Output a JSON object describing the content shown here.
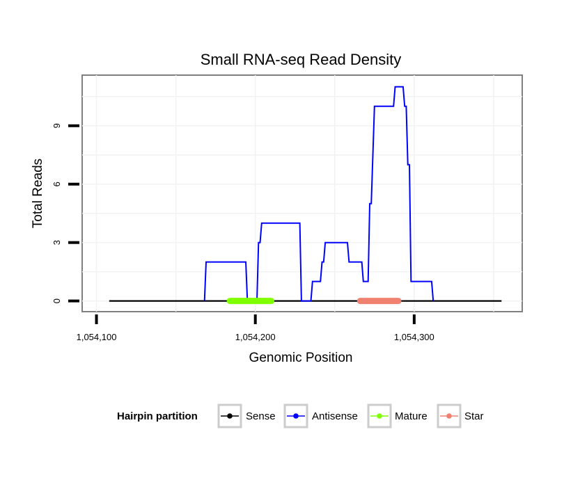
{
  "chart_data": {
    "type": "line",
    "title": "Small RNA-seq Read Density",
    "xlabel": "Genomic Position",
    "ylabel": "Total Reads",
    "xlim": [
      1054091,
      1054368
    ],
    "ylim": [
      -0.55,
      11.6
    ],
    "x_ticks": [
      1054100,
      1054200,
      1054300
    ],
    "x_tick_labels": [
      "1,054,100",
      "1,054,200",
      "1,054,300"
    ],
    "y_ticks": [
      0,
      3,
      6,
      9
    ],
    "y_tick_labels": [
      "0",
      "3",
      "6",
      "9"
    ],
    "grid": true,
    "series": [
      {
        "name": "Sense",
        "color": "#000000",
        "points": [
          [
            1054108,
            0
          ],
          [
            1054355,
            0
          ]
        ]
      },
      {
        "name": "Antisense",
        "color": "#0000ff",
        "points": [
          [
            1054168,
            0
          ],
          [
            1054169,
            2
          ],
          [
            1054194,
            2
          ],
          [
            1054195,
            0
          ],
          [
            1054201,
            0
          ],
          [
            1054202,
            3
          ],
          [
            1054203,
            3
          ],
          [
            1054204,
            4
          ],
          [
            1054228,
            4
          ],
          [
            1054229,
            0
          ],
          [
            1054235,
            0
          ],
          [
            1054236,
            1
          ],
          [
            1054241,
            1
          ],
          [
            1054242,
            2
          ],
          [
            1054243,
            2
          ],
          [
            1054244,
            3
          ],
          [
            1054258,
            3
          ],
          [
            1054259,
            2
          ],
          [
            1054267,
            2
          ],
          [
            1054268,
            1
          ],
          [
            1054271,
            1
          ],
          [
            1054272,
            5
          ],
          [
            1054273,
            5
          ],
          [
            1054275,
            10
          ],
          [
            1054287,
            10
          ],
          [
            1054288,
            11
          ],
          [
            1054293,
            11
          ],
          [
            1054294,
            10
          ],
          [
            1054295,
            10
          ],
          [
            1054296,
            7
          ],
          [
            1054297,
            7
          ],
          [
            1054298,
            1
          ],
          [
            1054311,
            1
          ],
          [
            1054312,
            0
          ]
        ]
      },
      {
        "name": "Mature",
        "color": "#80ff00",
        "points": [
          [
            1054184,
            0
          ],
          [
            1054210,
            0
          ]
        ]
      },
      {
        "name": "Star",
        "color": "#f08070",
        "points": [
          [
            1054266,
            0
          ],
          [
            1054290,
            0
          ]
        ]
      }
    ],
    "legend": {
      "title": "Hairpin partition",
      "position": "bottom",
      "entries": [
        "Sense",
        "Antisense",
        "Mature",
        "Star"
      ]
    }
  }
}
